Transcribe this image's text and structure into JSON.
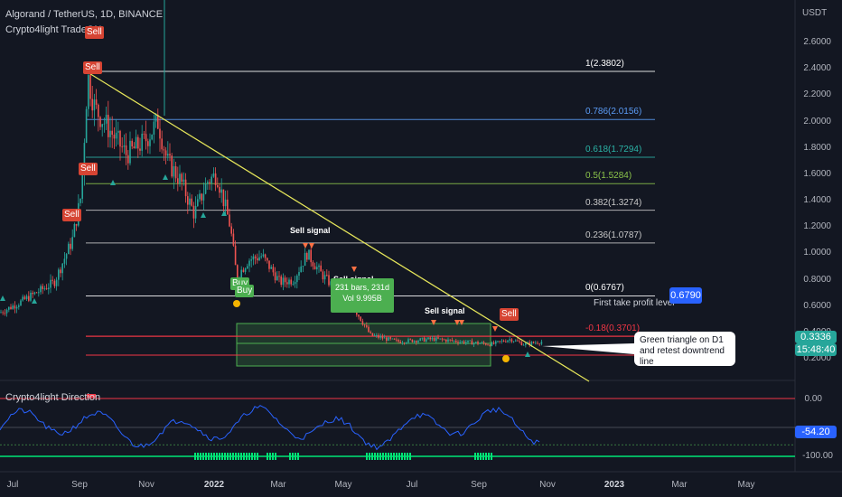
{
  "header": {
    "symbol": "Algorand / TetherUS, 1D, BINANCE",
    "indicator": "Crypto4light TradeON",
    "currency": "USDT"
  },
  "price_axis": [
    "2.6000",
    "2.4000",
    "2.2000",
    "2.0000",
    "1.8000",
    "1.6000",
    "1.4000",
    "1.2000",
    "1.0000",
    "0.8000",
    "0.6000",
    "0.4000",
    "0.2000"
  ],
  "date_axis": [
    {
      "label": "Jul",
      "bold": false
    },
    {
      "label": "Sep",
      "bold": false
    },
    {
      "label": "Nov",
      "bold": false
    },
    {
      "label": "2022",
      "bold": true
    },
    {
      "label": "Mar",
      "bold": false
    },
    {
      "label": "May",
      "bold": false
    },
    {
      "label": "Jul",
      "bold": false
    },
    {
      "label": "Sep",
      "bold": false
    },
    {
      "label": "Nov",
      "bold": false
    },
    {
      "label": "2023",
      "bold": true
    },
    {
      "label": "Mar",
      "bold": false
    },
    {
      "label": "May",
      "bold": false
    }
  ],
  "fib_levels": [
    {
      "label": "1(2.3802)",
      "value": 2.3802,
      "color": "#ffffff"
    },
    {
      "label": "0.786(2.0156)",
      "value": 2.0156,
      "color": "#5b9cf6"
    },
    {
      "label": "0.618(1.7294)",
      "value": 1.7294,
      "color": "#2bb3a6"
    },
    {
      "label": "0.5(1.5284)",
      "value": 1.5284,
      "color": "#8bc34a"
    },
    {
      "label": "0.382(1.3274)",
      "value": 1.3274,
      "color": "#c8c8c8"
    },
    {
      "label": "0.236(1.0787)",
      "value": 1.0787,
      "color": "#c8c8c8"
    },
    {
      "label": "0(0.6767)",
      "value": 0.6767,
      "color": "#ffffff"
    },
    {
      "label": "-0.18(0.3701)",
      "value": 0.3701,
      "color": "#f23645"
    }
  ],
  "signals": {
    "sell": "Sell",
    "buy": "Buy",
    "sell_signal": "Sell signal"
  },
  "measure_box": {
    "line1": "231 bars, 231d",
    "line2": "Vol 9.995B"
  },
  "annotations": {
    "first_take_profit": "First take profit level",
    "callout_line1": "Green triangle on D1",
    "callout_line2": "and retest downtrend line"
  },
  "price_badges": {
    "take_profit_price": "0.6790",
    "last_price": "0.3336",
    "countdown": "15:48:40"
  },
  "indicator_pane": {
    "title": "Crypto4light Direction",
    "ticks": [
      "0.00",
      "-100.00"
    ],
    "current_value": "-54.20"
  },
  "colors": {
    "background": "#131722",
    "up": "#26a69a",
    "down": "#ef5350",
    "trendline": "#e6e65a",
    "indicator_line": "#2962ff",
    "accent_blue": "#2962ff"
  }
}
